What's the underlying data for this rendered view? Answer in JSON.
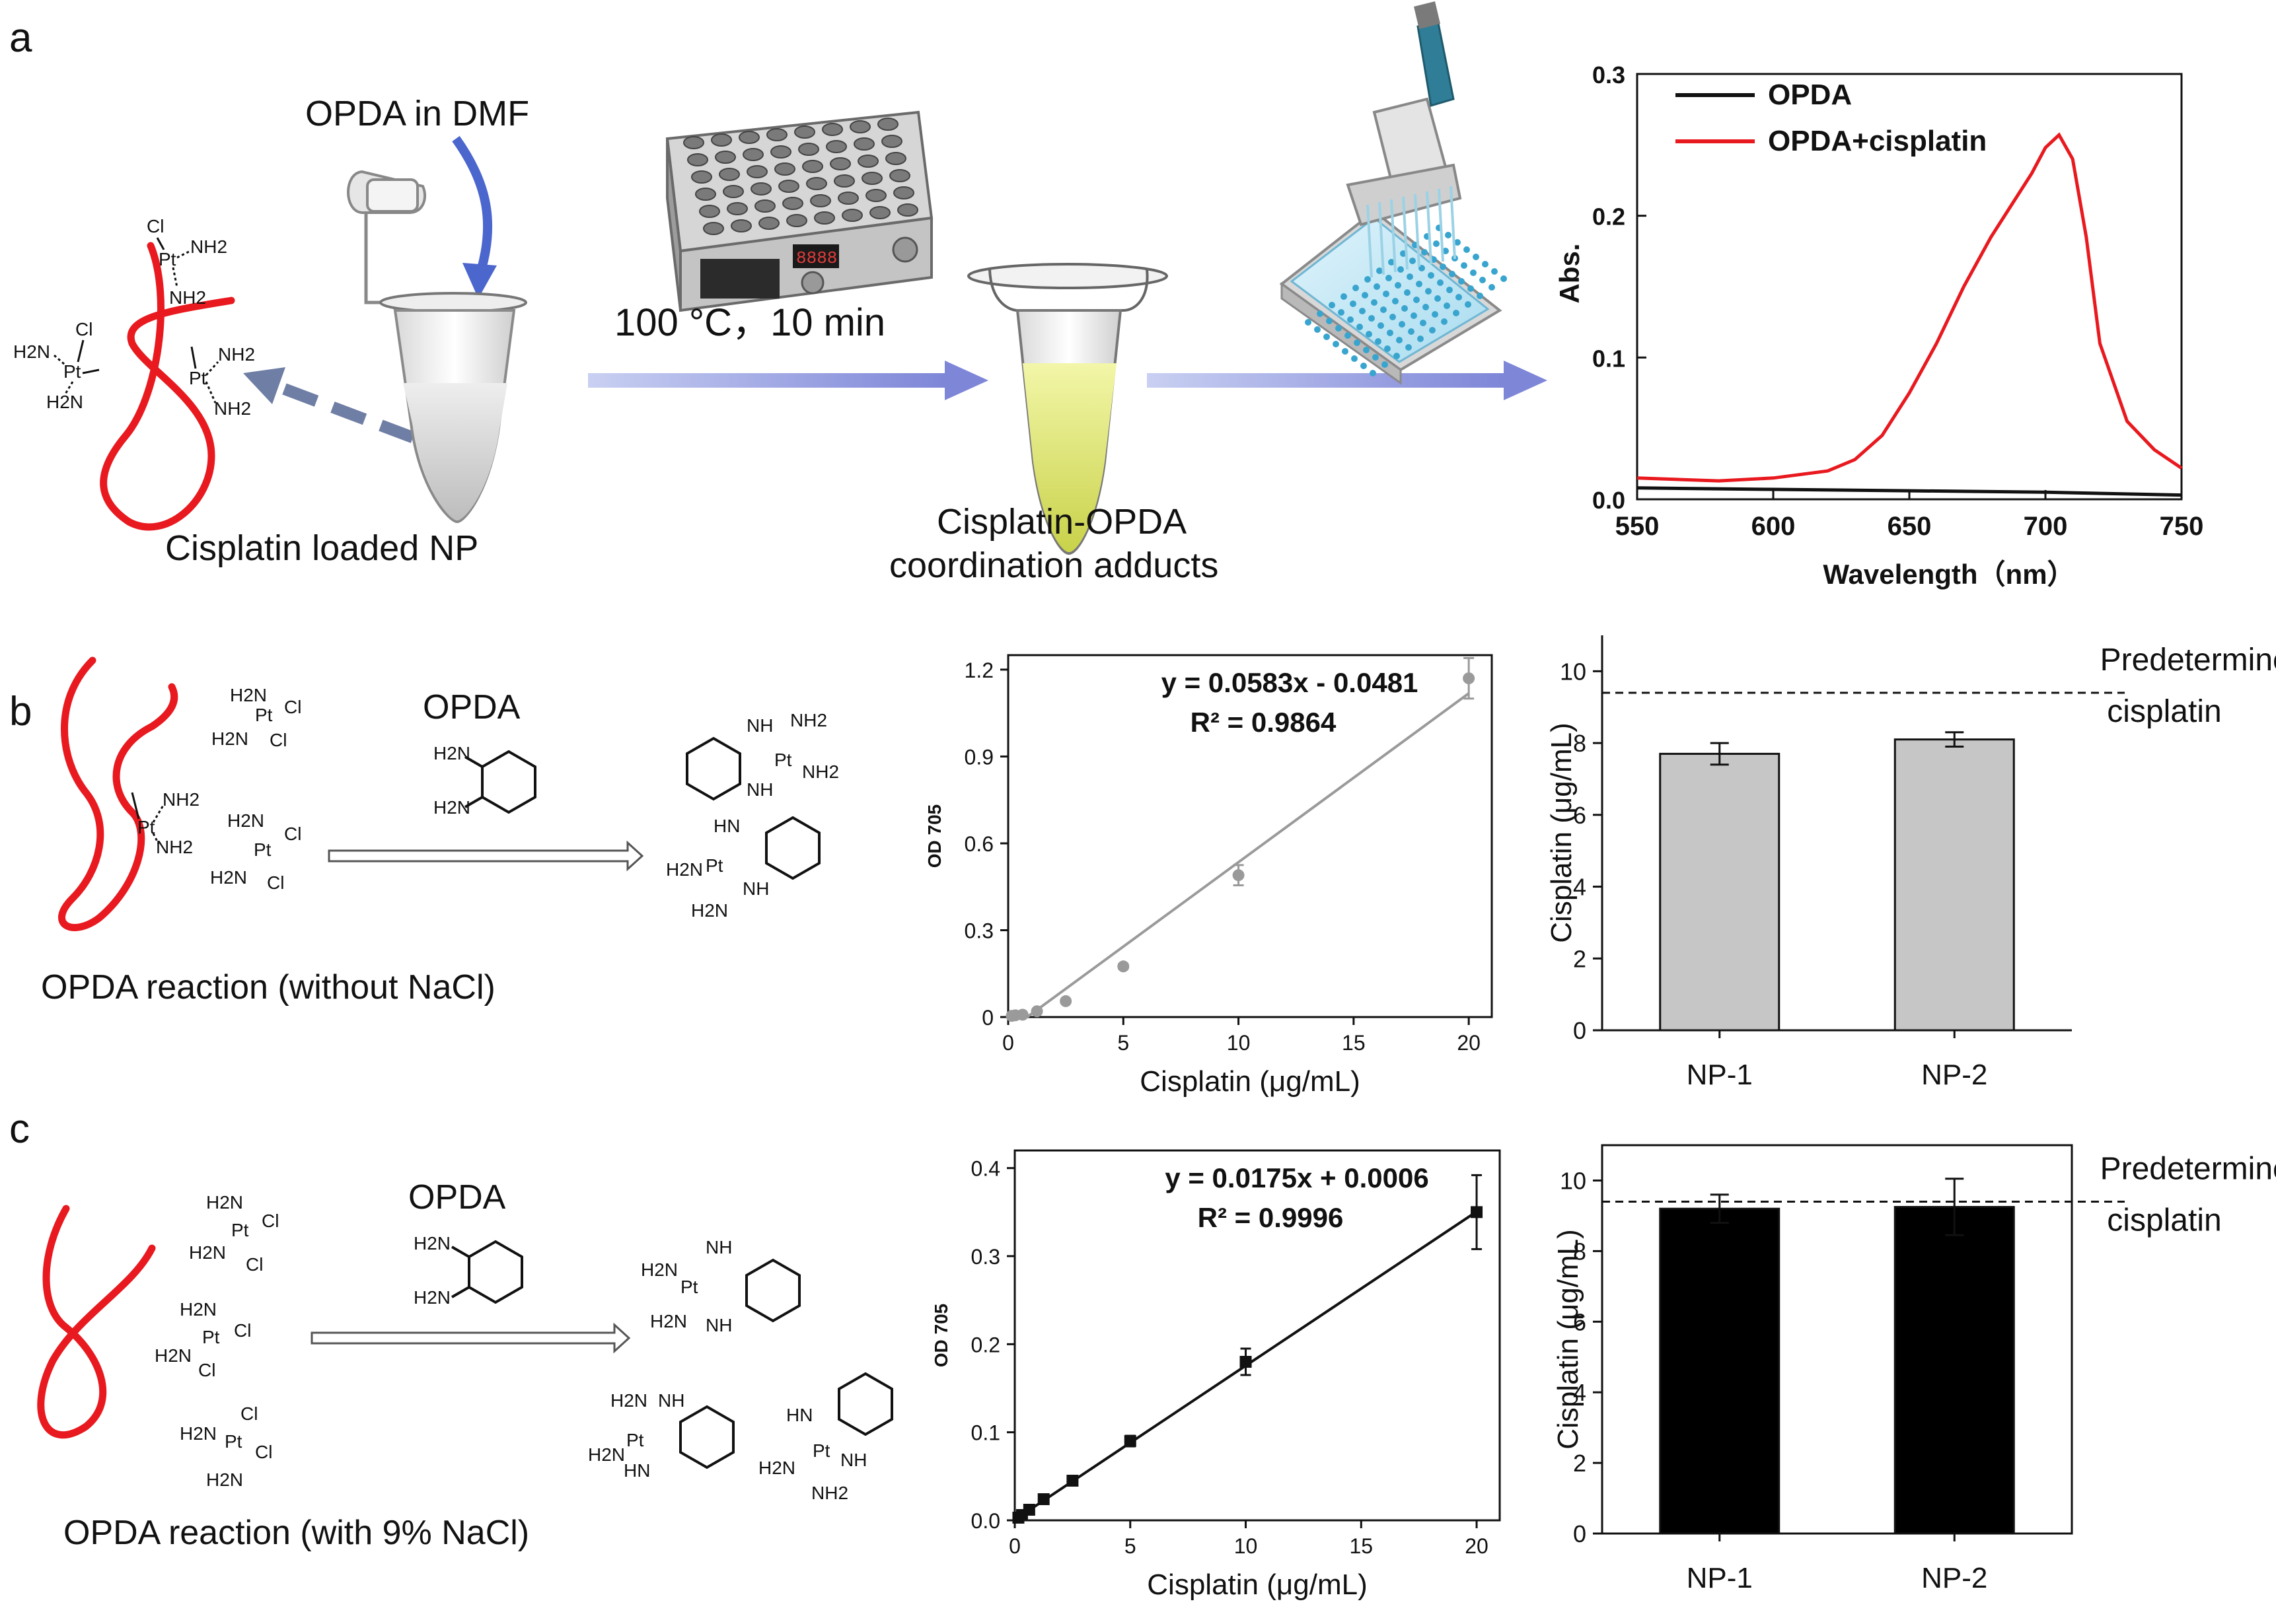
{
  "panels": {
    "a": {
      "letter": "a",
      "opda_label": "OPDA in DMF",
      "heat_label": "100 °C，10 min",
      "np_label": "Cisplatin loaded NP",
      "adduct_label_1": "Cisplatin-OPDA",
      "adduct_label_2": "coordination adducts",
      "heater_display": "8888",
      "chem": {
        "cl": "Cl",
        "nh2": "NH2",
        "pt": "Pt",
        "h2n": "H2N"
      }
    },
    "b": {
      "letter": "b",
      "reagent": "OPDA",
      "caption": "OPDA reaction (without NaCl)",
      "chem": {
        "nh": "NH",
        "hn": "HN",
        "pt": "Pt",
        "nh2": "NH2",
        "h2n": "H2N",
        "cl": "Cl"
      }
    },
    "c": {
      "letter": "c",
      "reagent": "OPDA",
      "caption": "OPDA reaction (with 9% NaCl)",
      "chem": {
        "nh": "NH",
        "hn": "HN",
        "pt": "Pt",
        "nh2": "NH2",
        "h2n": "H2N",
        "cl": "Cl"
      }
    }
  },
  "chart_data": [
    {
      "id": "spectrum",
      "type": "line",
      "xlabel": "Wavelength（nm）",
      "ylabel": "Abs.",
      "xlim": [
        550,
        750
      ],
      "ylim": [
        0.0,
        0.3
      ],
      "xticks": [
        "550",
        "600",
        "650",
        "700",
        "750"
      ],
      "yticks": [
        "0.0",
        "0.1",
        "0.2",
        "0.3"
      ],
      "legend_position": "top-left",
      "series": [
        {
          "name": "OPDA",
          "color": "#111111",
          "x": [
            550,
            600,
            650,
            700,
            750
          ],
          "y": [
            0.008,
            0.007,
            0.006,
            0.005,
            0.003
          ]
        },
        {
          "name": "OPDA+cisplatin",
          "color": "#e8191f",
          "x": [
            550,
            580,
            600,
            620,
            630,
            640,
            650,
            660,
            670,
            680,
            690,
            695,
            700,
            705,
            710,
            715,
            720,
            730,
            740,
            750
          ],
          "y": [
            0.015,
            0.013,
            0.015,
            0.02,
            0.028,
            0.045,
            0.075,
            0.11,
            0.15,
            0.185,
            0.215,
            0.23,
            0.248,
            0.257,
            0.24,
            0.185,
            0.11,
            0.055,
            0.035,
            0.022
          ]
        }
      ]
    },
    {
      "id": "std_b",
      "type": "scatter",
      "xlabel": "Cisplatin (μg/mL)",
      "ylabel": "OD 705",
      "xlim": [
        0,
        21
      ],
      "ylim": [
        0,
        1.25
      ],
      "xticks": [
        "0",
        "5",
        "10",
        "15",
        "20"
      ],
      "yticks": [
        "0",
        "0.3",
        "0.6",
        "0.9",
        "1.2"
      ],
      "equation": "y = 0.0583x - 0.0481",
      "r2": "R² = 0.9864",
      "marker_color": "#9a9a9a",
      "fit_color": "#9a9a9a",
      "fit": {
        "slope": 0.0583,
        "intercept": -0.0481,
        "x_start": 0.83,
        "x_end": 20
      },
      "x": [
        0.156,
        0.3125,
        0.625,
        1.25,
        2.5,
        5,
        10,
        20
      ],
      "y": [
        0.004,
        0.006,
        0.008,
        0.02,
        0.055,
        0.175,
        0.49,
        1.17
      ],
      "err": [
        0.002,
        0.002,
        0.003,
        0.004,
        0.006,
        0.008,
        0.035,
        0.07
      ]
    },
    {
      "id": "bar_b",
      "type": "bar",
      "categories": [
        "NP-1",
        "NP-2"
      ],
      "values": [
        7.7,
        8.1
      ],
      "err": [
        0.3,
        0.2
      ],
      "bar_color": "#c6c6c6",
      "ylabel": "Cisplatin (μg/mL)",
      "ylim": [
        0,
        11
      ],
      "yticks": [
        "0",
        "2",
        "4",
        "6",
        "8",
        "10"
      ],
      "reference_value": 9.4,
      "reference_label_1": "Predetermined",
      "reference_label_2": "cisplatin"
    },
    {
      "id": "std_c",
      "type": "scatter",
      "xlabel": "Cisplatin (μg/mL)",
      "ylabel": "OD 705",
      "xlim": [
        0,
        21
      ],
      "ylim": [
        0,
        0.42
      ],
      "xticks": [
        "0",
        "5",
        "10",
        "15",
        "20"
      ],
      "yticks": [
        "0.0",
        "0.1",
        "0.2",
        "0.3",
        "0.4"
      ],
      "equation": "y = 0.0175x + 0.0006",
      "r2": "R² = 0.9996",
      "marker_color": "#111111",
      "fit_color": "#111111",
      "fit": {
        "slope": 0.0175,
        "intercept": 0.0006,
        "x_start": 0,
        "x_end": 20
      },
      "x": [
        0.156,
        0.3125,
        0.625,
        1.25,
        2.5,
        5,
        10,
        20
      ],
      "y": [
        0.003,
        0.006,
        0.012,
        0.024,
        0.045,
        0.09,
        0.18,
        0.35
      ],
      "err": [
        0.002,
        0.002,
        0.003,
        0.003,
        0.004,
        0.006,
        0.015,
        0.042
      ]
    },
    {
      "id": "bar_c",
      "type": "bar",
      "categories": [
        "NP-1",
        "NP-2"
      ],
      "values": [
        9.2,
        9.25
      ],
      "err": [
        0.4,
        0.8
      ],
      "bar_color": "#000000",
      "ylabel": "Cisplatin (μg/mL)",
      "ylim": [
        0,
        11
      ],
      "yticks": [
        "0",
        "2",
        "4",
        "6",
        "8",
        "10"
      ],
      "reference_value": 9.4,
      "reference_label_1": "Predetermined",
      "reference_label_2": "cisplatin"
    }
  ]
}
